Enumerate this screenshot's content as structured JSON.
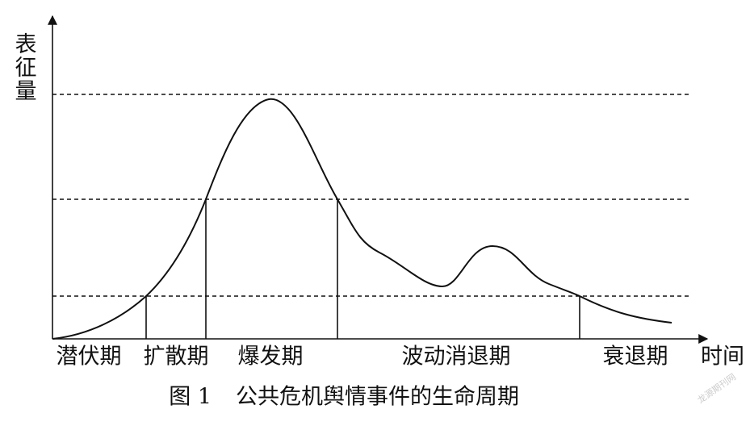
{
  "axes": {
    "y_label": "表征量",
    "x_label": "时间"
  },
  "phases": [
    "潜伏期",
    "扩散期",
    "爆发期",
    "波动消退期",
    "衰退期"
  ],
  "caption": {
    "number": "图 1",
    "title": "公共危机舆情事件的生命周期"
  },
  "watermark": "龙源期刊网"
}
